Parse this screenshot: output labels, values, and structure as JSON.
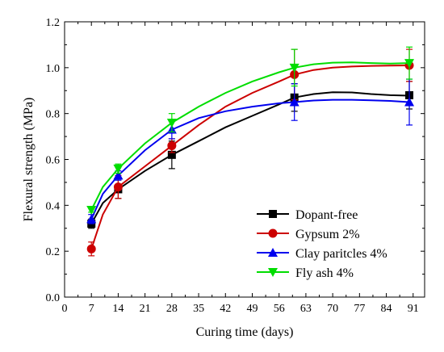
{
  "chart_data": {
    "type": "line",
    "xlabel": "Curing time (days)",
    "ylabel": "Flexural strength (MPa)",
    "xlim": [
      0,
      94
    ],
    "ylim": [
      0.0,
      1.2
    ],
    "xticks": [
      0,
      7,
      14,
      21,
      28,
      35,
      42,
      49,
      56,
      63,
      70,
      77,
      84,
      91
    ],
    "yticks": [
      0.0,
      0.2,
      0.4,
      0.6,
      0.8,
      1.0,
      1.2
    ],
    "ytick_labels": [
      "0.0",
      "0.2",
      "0.4",
      "0.6",
      "0.8",
      "1.0",
      "1.2"
    ],
    "legend_position": "bottom-right",
    "grid": false,
    "series": [
      {
        "name": "Dopant-free",
        "color": "#000000",
        "marker": "square",
        "x": [
          7,
          14,
          28,
          60,
          90
        ],
        "y": [
          0.32,
          0.47,
          0.62,
          0.87,
          0.88
        ],
        "err": [
          0.02,
          0.04,
          0.06,
          0.06,
          0.06
        ],
        "curve": [
          [
            7,
            0.32
          ],
          [
            10,
            0.41
          ],
          [
            14,
            0.47
          ],
          [
            21,
            0.55
          ],
          [
            28,
            0.62
          ],
          [
            35,
            0.68
          ],
          [
            42,
            0.74
          ],
          [
            49,
            0.79
          ],
          [
            56,
            0.84
          ],
          [
            60,
            0.87
          ],
          [
            65,
            0.885
          ],
          [
            70,
            0.893
          ],
          [
            75,
            0.892
          ],
          [
            80,
            0.885
          ],
          [
            85,
            0.88
          ],
          [
            90,
            0.878
          ]
        ]
      },
      {
        "name": "Gypsum 2%",
        "color": "#cc0000",
        "marker": "circle",
        "x": [
          7,
          14,
          28,
          60,
          90
        ],
        "y": [
          0.21,
          0.48,
          0.66,
          0.97,
          1.01
        ],
        "err": [
          0.03,
          0.05,
          0.03,
          0.11,
          0.07
        ],
        "curve": [
          [
            7,
            0.21
          ],
          [
            10,
            0.36
          ],
          [
            14,
            0.48
          ],
          [
            21,
            0.57
          ],
          [
            28,
            0.66
          ],
          [
            35,
            0.75
          ],
          [
            42,
            0.83
          ],
          [
            49,
            0.89
          ],
          [
            56,
            0.94
          ],
          [
            60,
            0.97
          ],
          [
            65,
            0.99
          ],
          [
            70,
            1.0
          ],
          [
            75,
            1.005
          ],
          [
            80,
            1.008
          ],
          [
            85,
            1.009
          ],
          [
            90,
            1.01
          ]
        ]
      },
      {
        "name": "Clay paritcles 4%",
        "color": "#0000ee",
        "marker": "triangle",
        "x": [
          7,
          14,
          28,
          60,
          90
        ],
        "y": [
          0.34,
          0.53,
          0.73,
          0.85,
          0.85
        ],
        "err": [
          0.02,
          0.02,
          0.04,
          0.08,
          0.1
        ],
        "curve": [
          [
            7,
            0.34
          ],
          [
            10,
            0.45
          ],
          [
            14,
            0.53
          ],
          [
            21,
            0.64
          ],
          [
            28,
            0.73
          ],
          [
            35,
            0.78
          ],
          [
            42,
            0.81
          ],
          [
            49,
            0.83
          ],
          [
            56,
            0.845
          ],
          [
            60,
            0.85
          ],
          [
            65,
            0.857
          ],
          [
            70,
            0.86
          ],
          [
            75,
            0.86
          ],
          [
            80,
            0.858
          ],
          [
            85,
            0.855
          ],
          [
            90,
            0.85
          ]
        ]
      },
      {
        "name": "Fly ash 4%",
        "color": "#00dd00",
        "marker": "triangle-down",
        "x": [
          7,
          14,
          28,
          60,
          90
        ],
        "y": [
          0.38,
          0.56,
          0.76,
          1.0,
          1.02
        ],
        "err": [
          0.01,
          0.02,
          0.04,
          0.08,
          0.07
        ],
        "curve": [
          [
            7,
            0.38
          ],
          [
            10,
            0.48
          ],
          [
            14,
            0.56
          ],
          [
            21,
            0.67
          ],
          [
            28,
            0.76
          ],
          [
            35,
            0.83
          ],
          [
            42,
            0.89
          ],
          [
            49,
            0.94
          ],
          [
            56,
            0.98
          ],
          [
            60,
            1.0
          ],
          [
            65,
            1.015
          ],
          [
            70,
            1.022
          ],
          [
            75,
            1.023
          ],
          [
            80,
            1.02
          ],
          [
            85,
            1.018
          ],
          [
            90,
            1.02
          ]
        ]
      }
    ]
  }
}
